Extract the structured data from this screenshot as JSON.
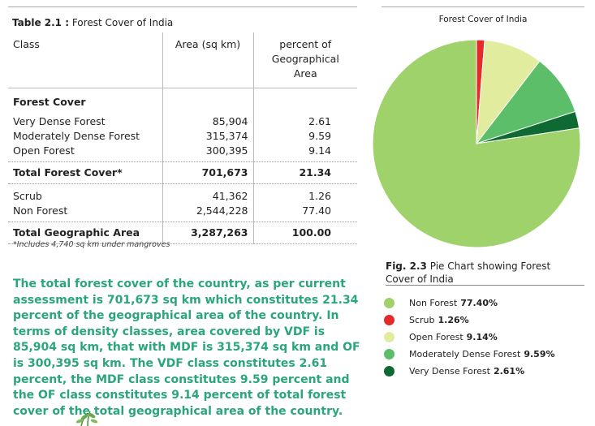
{
  "table": {
    "caption_label": "Table 2.1 :",
    "caption_text": "Forest Cover of India",
    "headers": {
      "class": "Class",
      "area": "Area (sq km)",
      "percent": "percent of\nGeographical\nArea"
    },
    "section_heading": "Forest Cover",
    "rows_forest": [
      {
        "class": "Very Dense Forest",
        "area": "85,904",
        "percent": "2.61"
      },
      {
        "class": "Moderately Dense Forest",
        "area": "315,374",
        "percent": "9.59"
      },
      {
        "class": "Open Forest",
        "area": "300,395",
        "percent": "9.14"
      }
    ],
    "total_forest": {
      "class": "Total Forest Cover*",
      "area": "701,673",
      "percent": "21.34"
    },
    "rows_other": [
      {
        "class": "Scrub",
        "area": "41,362",
        "percent": "1.26"
      },
      {
        "class": "Non Forest",
        "area": "2,544,228",
        "percent": "77.40"
      }
    ],
    "total_geo": {
      "class": "Total Geographic Area",
      "area": "3,287,263",
      "percent": "100.00"
    },
    "footnote": "*Includes 4,740 sq km under mangroves"
  },
  "paragraph": "The total forest cover of the country, as per current assessment is 701,673 sq km which constitutes 21.34 percent of the geographical area of the country. In terms of density classes, area covered by VDF is 85,904 sq km, that with MDF is 315,374 sq km and OF is 300,395 sq km. The VDF class constitutes 2.61 percent, the MDF class constitutes 9.59 percent and the OF class constitutes 9.14 percent of total forest cover of the total geographical area of the country.",
  "figure": {
    "caption_label": "Fig. 2.3",
    "caption_text": "Pie Chart showing Forest Cover of India"
  },
  "chart_data": {
    "type": "pie",
    "title": "Forest Cover of India",
    "start_angle_deg": 0,
    "slices": [
      {
        "label": "Scrub",
        "value": 1.26,
        "display": "1.26%",
        "color": "#e52a2a"
      },
      {
        "label": "Open Forest",
        "value": 9.14,
        "display": "9.14%",
        "color": "#e2ec9e"
      },
      {
        "label": "Moderately Dense Forest",
        "value": 9.59,
        "display": "9.59%",
        "color": "#5cbe68"
      },
      {
        "label": "Very Dense Forest",
        "value": 2.61,
        "display": "2.61%",
        "color": "#0e6a32"
      },
      {
        "label": "Non Forest",
        "value": 77.4,
        "display": "77.40%",
        "color": "#9fd26a"
      }
    ],
    "legend": [
      {
        "label": "Non Forest",
        "display": "77.40%",
        "color": "#9fd26a"
      },
      {
        "label": "Scrub",
        "display": "1.26%",
        "color": "#e52a2a"
      },
      {
        "label": "Open Forest",
        "display": "9.14%",
        "color": "#e2ec9e"
      },
      {
        "label": "Moderately Dense Forest",
        "display": "9.59%",
        "color": "#5cbe68"
      },
      {
        "label": "Very Dense Forest",
        "display": "2.61%",
        "color": "#0e6a32"
      }
    ],
    "legend_position": "bottom-right"
  }
}
